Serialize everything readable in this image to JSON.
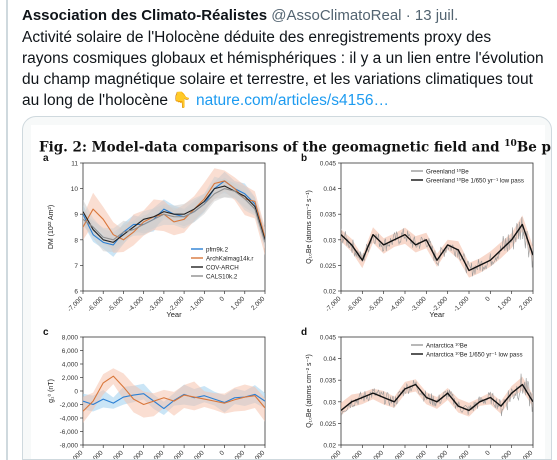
{
  "tweet": {
    "author_name": "Association des Climato-Réalistes",
    "author_handle": "@AssoClimatoReal",
    "separator": "·",
    "date": "13 juil.",
    "text_lines": [
      "Activité solaire de l'Holocène déduite des enregistrements proxy des",
      "rayons cosmiques globaux et hémisphériques : il y a un lien entre l'évolution",
      "du champ magnétique solaire et terrestre, et les variations climatiques tout",
      "au long de l'holocène"
    ],
    "emoji": "👇",
    "link_text": "nature.com/articles/s4156…"
  },
  "figure": {
    "title_prefix": "Fig. 2: Model-data comparisons of the geomagnetic field and ",
    "title_sup": "10",
    "title_suffix": "Be production rates."
  },
  "chart_data": [
    {
      "panel": "a",
      "type": "line",
      "ylabel": "DM (10²² Am²)",
      "xlabel": "Year",
      "xlim": [
        -7000,
        2000
      ],
      "ylim": [
        6,
        11
      ],
      "xticks": [
        -7000,
        -6000,
        -5000,
        -4000,
        -3000,
        -2000,
        -1000,
        0,
        1000,
        2000
      ],
      "yticks": [
        6,
        7,
        8,
        9,
        10,
        11
      ],
      "legend": [
        "pfm9k.2",
        "ArchKalmag14k.r",
        "COV-ARCH",
        "CALS10k.2"
      ],
      "legend_position": "bottom-right",
      "series": [
        {
          "name": "pfm9k.2",
          "color": "#2a7fd4",
          "x": [
            -7000,
            -6500,
            -6000,
            -5500,
            -5000,
            -4500,
            -4000,
            -3500,
            -3000,
            -2500,
            -2000,
            -1500,
            -1000,
            -500,
            0,
            500,
            1000,
            1500,
            2000
          ],
          "y": [
            9.0,
            8.2,
            7.9,
            7.8,
            8.3,
            8.6,
            8.6,
            8.8,
            9.2,
            9.0,
            8.9,
            9.1,
            9.4,
            10.0,
            10.3,
            10.0,
            9.8,
            9.4,
            8.0
          ]
        },
        {
          "name": "ArchKalmag14k.r",
          "color": "#d9773b",
          "x": [
            -7000,
            -6500,
            -6000,
            -5500,
            -5000,
            -4500,
            -4000,
            -3500,
            -3000,
            -2500,
            -2000,
            -1500,
            -1000,
            -500,
            0,
            500,
            1000,
            1500,
            2000
          ],
          "y": [
            8.5,
            9.2,
            8.8,
            8.2,
            8.0,
            8.3,
            8.7,
            8.9,
            9.0,
            8.7,
            8.8,
            9.2,
            9.6,
            10.2,
            10.3,
            10.0,
            9.6,
            9.5,
            8.1
          ]
        },
        {
          "name": "COV-ARCH",
          "color": "#222222",
          "x": [
            -7000,
            -6500,
            -6000,
            -5500,
            -5000,
            -4500,
            -4000,
            -3500,
            -3000,
            -2500,
            -2000,
            -1500,
            -1000,
            -500,
            0,
            500,
            1000,
            1500,
            2000
          ],
          "y": [
            9.1,
            8.4,
            8.0,
            7.9,
            8.2,
            8.5,
            8.8,
            8.9,
            9.1,
            9.0,
            9.0,
            9.2,
            9.5,
            10.0,
            10.1,
            9.9,
            9.7,
            9.3,
            8.0
          ]
        },
        {
          "name": "CALS10k.2",
          "color": "#8f8f8f",
          "x": [
            -7000,
            -6500,
            -6000,
            -5500,
            -5000,
            -4500,
            -4000,
            -3500,
            -3000,
            -2500,
            -2000,
            -1500,
            -1000,
            -500,
            0,
            500,
            1000,
            1500,
            2000
          ],
          "y": [
            8.8,
            8.5,
            8.1,
            8.0,
            8.3,
            8.4,
            8.6,
            8.8,
            9.0,
            8.9,
            8.9,
            9.1,
            9.4,
            9.8,
            10.0,
            9.9,
            9.6,
            9.2,
            7.9
          ]
        }
      ]
    },
    {
      "panel": "b",
      "type": "line",
      "ylabel": "Q₁₀Be (atoms cm⁻² s⁻¹)",
      "xlabel": "Year",
      "xlim": [
        -7000,
        2000
      ],
      "ylim": [
        0.02,
        0.045
      ],
      "xticks": [
        -7000,
        -6000,
        -5000,
        -4000,
        -3000,
        -2000,
        -1000,
        0,
        1000,
        2000
      ],
      "yticks": [
        0.02,
        0.025,
        0.03,
        0.035,
        0.04,
        0.045
      ],
      "legend": [
        "Greenland ¹⁰Be",
        "Greenland ¹⁰Be 1/650 yr⁻¹ low pass"
      ],
      "legend_position": "top-right",
      "series": [
        {
          "name": "Greenland ¹⁰Be 1/650 yr⁻¹ low pass",
          "color": "#111111",
          "x": [
            -7000,
            -6500,
            -6000,
            -5500,
            -5000,
            -4500,
            -4000,
            -3500,
            -3000,
            -2500,
            -2000,
            -1500,
            -1000,
            -500,
            0,
            500,
            1000,
            1500,
            2000
          ],
          "y": [
            0.031,
            0.029,
            0.026,
            0.031,
            0.029,
            0.03,
            0.031,
            0.029,
            0.03,
            0.026,
            0.029,
            0.028,
            0.024,
            0.025,
            0.026,
            0.028,
            0.03,
            0.033,
            0.027
          ]
        }
      ]
    },
    {
      "panel": "c",
      "type": "line",
      "ylabel": "g₁⁰ (nT)",
      "xlabel": "Year",
      "xlim": [
        -7000,
        2000
      ],
      "ylim": [
        -8000,
        8000
      ],
      "xticks": [
        -7000,
        -6000,
        -5000,
        -4000,
        -3000,
        -2000,
        -1000,
        0,
        1000,
        2000
      ],
      "yticks": [
        -8000,
        -6000,
        -4000,
        -2000,
        0,
        2000,
        4000,
        6000,
        8000
      ],
      "series": [
        {
          "name": "pfm9k.2",
          "color": "#2a7fd4",
          "x": [
            -7000,
            -6500,
            -6000,
            -5500,
            -5000,
            -4500,
            -4000,
            -3500,
            -3000,
            -2500,
            -2000,
            -1500,
            -1000,
            -500,
            0,
            500,
            1000,
            1500,
            2000
          ],
          "y": [
            -1500,
            -2000,
            -1200,
            -1800,
            -900,
            -600,
            -400,
            -1500,
            -2600,
            -1400,
            -500,
            -1000,
            -700,
            -1200,
            -1700,
            -1000,
            -900,
            -500,
            -1500
          ]
        },
        {
          "name": "ArchKalmag14k.r",
          "color": "#d9773b",
          "x": [
            -7000,
            -6500,
            -6000,
            -5500,
            -5000,
            -4500,
            -4000,
            -3500,
            -3000,
            -2500,
            -2000,
            -1500,
            -1000,
            -500,
            0,
            500,
            1000,
            1500,
            2000
          ],
          "y": [
            -3000,
            -1500,
            1200,
            2200,
            600,
            -1200,
            -2000,
            -1500,
            -1000,
            -1500,
            -600,
            -900,
            -1200,
            -1500,
            -1800,
            -1300,
            -900,
            -700,
            -2500
          ]
        }
      ]
    },
    {
      "panel": "d",
      "type": "line",
      "ylabel": "Q₁₀Be (atoms cm⁻² s⁻¹)",
      "xlabel": "Year",
      "xlim": [
        -7000,
        2000
      ],
      "ylim": [
        0.02,
        0.045
      ],
      "xticks": [
        -7000,
        -6000,
        -5000,
        -4000,
        -3000,
        -2000,
        -1000,
        0,
        1000,
        2000
      ],
      "yticks": [
        0.02,
        0.025,
        0.03,
        0.035,
        0.04,
        0.045
      ],
      "legend": [
        "Antarctica ¹⁰Be",
        "Antarctica ¹⁰Be 1/650 yr⁻¹ low pass"
      ],
      "legend_position": "top-right",
      "series": [
        {
          "name": "Antarctica ¹⁰Be 1/650 yr⁻¹ low pass",
          "color": "#111111",
          "x": [
            -7000,
            -6500,
            -6000,
            -5500,
            -5000,
            -4500,
            -4000,
            -3500,
            -3000,
            -2500,
            -2000,
            -1500,
            -1000,
            -500,
            0,
            500,
            1000,
            1500,
            2000
          ],
          "y": [
            0.028,
            0.03,
            0.031,
            0.032,
            0.031,
            0.03,
            0.033,
            0.034,
            0.031,
            0.03,
            0.032,
            0.029,
            0.028,
            0.03,
            0.031,
            0.029,
            0.032,
            0.034,
            0.03
          ]
        }
      ]
    }
  ]
}
